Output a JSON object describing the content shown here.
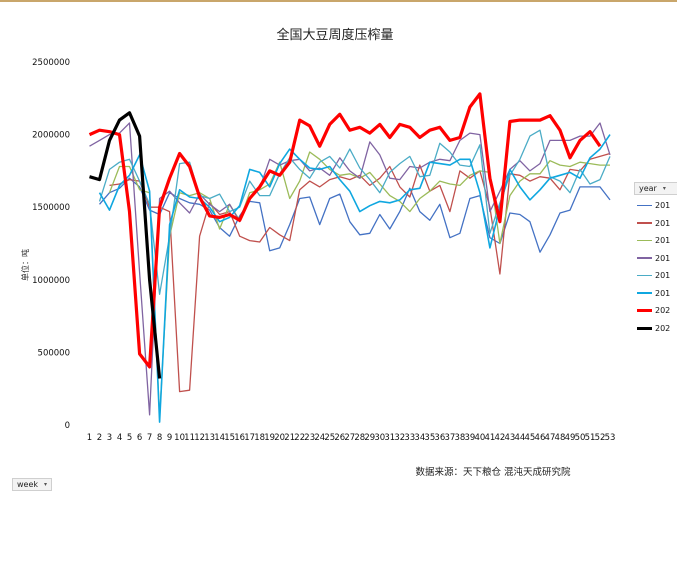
{
  "chart_data": {
    "type": "line",
    "title": "全国大豆周度压榨量",
    "ylabel": "单位：吨",
    "xlabel": "",
    "source_note": "数据来源：天下粮仓 混沌天成研究院",
    "ylim": [
      0,
      2500000
    ],
    "y_ticks": [
      0,
      500000,
      1000000,
      1500000,
      2000000,
      2500000
    ],
    "y_tick_labels": [
      "0",
      "500000",
      "1000000",
      "1500000",
      "2000000",
      "2500000"
    ],
    "x": [
      1,
      2,
      3,
      4,
      5,
      6,
      7,
      8,
      9,
      10,
      11,
      12,
      13,
      14,
      15,
      16,
      17,
      18,
      19,
      20,
      21,
      22,
      23,
      24,
      25,
      26,
      27,
      28,
      29,
      30,
      31,
      32,
      33,
      34,
      35,
      36,
      37,
      38,
      39,
      40,
      41,
      42,
      43,
      44,
      45,
      46,
      47,
      48,
      49,
      50,
      51,
      52,
      53
    ],
    "grid": false,
    "legend_position": "right",
    "series": [
      {
        "name": "201",
        "color": "#4472c4",
        "width": 1.3,
        "values": [
          null,
          1520000,
          1600000,
          1630000,
          1700000,
          1640000,
          1480000,
          1450000,
          1600000,
          1560000,
          1530000,
          1520000,
          1480000,
          1360000,
          1300000,
          1440000,
          1540000,
          1530000,
          1200000,
          1220000,
          1380000,
          1560000,
          1570000,
          1380000,
          1560000,
          1590000,
          1400000,
          1310000,
          1320000,
          1450000,
          1350000,
          1470000,
          1630000,
          1470000,
          1410000,
          1520000,
          1290000,
          1320000,
          1560000,
          1580000,
          1290000,
          1250000,
          1460000,
          1450000,
          1400000,
          1190000,
          1310000,
          1460000,
          1480000,
          1640000,
          1640000,
          1640000,
          1550000
        ]
      },
      {
        "name": "201",
        "color": "#c0504d",
        "width": 1.3,
        "values": [
          null,
          null,
          1650000,
          1660000,
          1690000,
          1680000,
          1500000,
          1500000,
          1470000,
          230000,
          240000,
          1300000,
          1530000,
          1450000,
          1470000,
          1300000,
          1270000,
          1260000,
          1360000,
          1310000,
          1270000,
          1620000,
          1680000,
          1640000,
          1690000,
          1710000,
          1690000,
          1720000,
          1650000,
          1700000,
          1780000,
          1640000,
          1570000,
          1790000,
          1610000,
          1650000,
          1470000,
          1750000,
          1700000,
          1750000,
          1500000,
          1040000,
          1730000,
          1720000,
          1680000,
          1710000,
          1700000,
          1620000,
          1760000,
          1750000,
          1830000,
          1850000,
          1870000
        ]
      },
      {
        "name": "201",
        "color": "#9bbb59",
        "width": 1.3,
        "values": [
          null,
          null,
          1600000,
          1780000,
          1780000,
          1620000,
          1600000,
          50000,
          1300000,
          1600000,
          1580000,
          1600000,
          1560000,
          1350000,
          1520000,
          1410000,
          1600000,
          1620000,
          1660000,
          1810000,
          1560000,
          1680000,
          1880000,
          1830000,
          1760000,
          1720000,
          1730000,
          1700000,
          1740000,
          1660000,
          1580000,
          1540000,
          1470000,
          1560000,
          1610000,
          1680000,
          1660000,
          1650000,
          1720000,
          1750000,
          1740000,
          1250000,
          1580000,
          1680000,
          1730000,
          1730000,
          1820000,
          1790000,
          1780000,
          1810000,
          1800000,
          1790000,
          1790000
        ]
      },
      {
        "name": "201",
        "color": "#8064a2",
        "width": 1.3,
        "values": [
          1920000,
          1960000,
          2000000,
          2010000,
          2080000,
          1050000,
          70000,
          1560000,
          1610000,
          1530000,
          1460000,
          1590000,
          1520000,
          1470000,
          1520000,
          1400000,
          1560000,
          1630000,
          1830000,
          1790000,
          1820000,
          1830000,
          1750000,
          1770000,
          1720000,
          1840000,
          1750000,
          1700000,
          1950000,
          1860000,
          1700000,
          1690000,
          1780000,
          1770000,
          1810000,
          1830000,
          1820000,
          1960000,
          2010000,
          2000000,
          1470000,
          1610000,
          1760000,
          1820000,
          1750000,
          1800000,
          1960000,
          1960000,
          1960000,
          1990000,
          1990000,
          2080000,
          1860000
        ]
      },
      {
        "name": "201",
        "color": "#4bacc6",
        "width": 1.3,
        "values": [
          null,
          1540000,
          1760000,
          1810000,
          1830000,
          1680000,
          1520000,
          900000,
          1300000,
          1800000,
          1810000,
          1580000,
          1560000,
          1590000,
          1470000,
          1500000,
          1680000,
          1580000,
          1580000,
          1730000,
          1840000,
          1760000,
          1700000,
          1810000,
          1850000,
          1770000,
          1900000,
          1770000,
          1690000,
          1600000,
          1740000,
          1800000,
          1850000,
          1710000,
          1720000,
          1940000,
          1880000,
          1790000,
          1780000,
          1930000,
          1320000,
          1530000,
          1720000,
          1830000,
          1990000,
          2030000,
          1710000,
          1680000,
          1600000,
          1760000,
          1660000,
          1690000,
          1850000
        ]
      },
      {
        "name": "201",
        "color": "#0fa7e0",
        "width": 1.6,
        "values": [
          null,
          1600000,
          1480000,
          1650000,
          1720000,
          1860000,
          1610000,
          20000,
          1380000,
          1620000,
          1570000,
          1560000,
          1500000,
          1400000,
          1430000,
          1510000,
          1760000,
          1740000,
          1640000,
          1800000,
          1900000,
          1830000,
          1770000,
          1760000,
          1780000,
          1690000,
          1610000,
          1470000,
          1510000,
          1540000,
          1530000,
          1550000,
          1620000,
          1630000,
          1810000,
          1800000,
          1790000,
          1830000,
          1830000,
          1600000,
          1220000,
          1500000,
          1760000,
          1640000,
          1550000,
          1620000,
          1700000,
          1720000,
          1740000,
          1700000,
          1840000,
          1900000,
          2000000
        ]
      },
      {
        "name": "202",
        "color": "#ff0000",
        "width": 3.2,
        "values": [
          2000000,
          2030000,
          2020000,
          2000000,
          1470000,
          490000,
          400000,
          1500000,
          1700000,
          1870000,
          1780000,
          1570000,
          1440000,
          1430000,
          1450000,
          1410000,
          1560000,
          1640000,
          1750000,
          1720000,
          1810000,
          2100000,
          2060000,
          1920000,
          2070000,
          2140000,
          2030000,
          2050000,
          2010000,
          2070000,
          1980000,
          2070000,
          2050000,
          1980000,
          2030000,
          2050000,
          1960000,
          1980000,
          2190000,
          2280000,
          1700000,
          1400000,
          2090000,
          2100000,
          2100000,
          2100000,
          2130000,
          2030000,
          1840000,
          1960000,
          2020000,
          1920000,
          null
        ]
      },
      {
        "name": "202",
        "color": "#000000",
        "width": 3.2,
        "values": [
          1710000,
          1690000,
          1960000,
          2100000,
          2150000,
          1990000,
          1000000,
          320000,
          null,
          null,
          null,
          null,
          null,
          null,
          null,
          null,
          null,
          null,
          null,
          null,
          null,
          null,
          null,
          null,
          null,
          null,
          null,
          null,
          null,
          null,
          null,
          null,
          null,
          null,
          null,
          null,
          null,
          null,
          null,
          null,
          null,
          null,
          null,
          null,
          null,
          null,
          null,
          null,
          null,
          null,
          null,
          null,
          null
        ]
      }
    ]
  },
  "legend": {
    "header": "year",
    "labels": [
      "201",
      "201",
      "201",
      "201",
      "201",
      "201",
      "202",
      "202"
    ]
  },
  "filters": {
    "week_button": "week"
  }
}
